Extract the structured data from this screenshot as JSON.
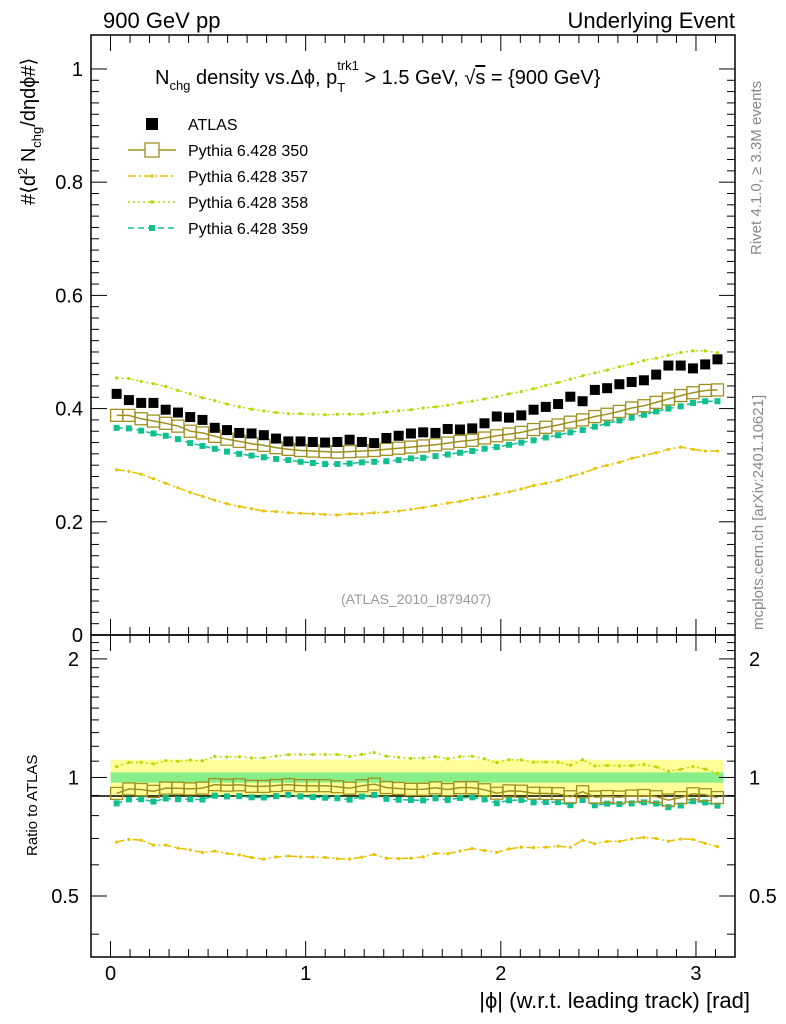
{
  "header": {
    "left": "900 GeV pp",
    "right": "Underlying Event"
  },
  "side_labels": {
    "rivet": "Rivet 4.1.0, ≥ 3.3M events",
    "mcplots": "mcplots.cern.ch [arXiv:2401.10621]"
  },
  "chart_data": {
    "type": "scatter",
    "title_parts": {
      "n": "N",
      "chg_sub": "chg",
      "mid": " density vs.Δϕ, p",
      "trk1_sup": "trk1",
      "t_sub": "T",
      "end": " > 1.5 GeV, ",
      "sqrt": "√",
      "s": "s",
      "energy": " = {900 GeV}"
    },
    "analysis_id": "(ATLAS_2010_I879407)",
    "ylabel_parts": {
      "a": "#⟨d",
      "two": "2",
      "b": " N",
      "chg": "chg",
      "c": "/dηdϕ#⟩"
    },
    "ratio_ylabel": "Ratio to ATLAS",
    "xlabel": "|ϕ| (w.r.t. leading track) [rad]",
    "xlim": [
      -0.1,
      3.2
    ],
    "ylim": [
      0.0,
      1.06
    ],
    "ratio_ylim": [
      0.35,
      2.3
    ],
    "main_yticks": [
      {
        "value": 0.0,
        "label": "0"
      },
      {
        "value": 0.2,
        "label": "0.2"
      },
      {
        "value": 0.4,
        "label": "0.4"
      },
      {
        "value": 0.6,
        "label": "0.6"
      },
      {
        "value": 0.8,
        "label": "0.8"
      },
      {
        "value": 1.0,
        "label": "1"
      }
    ],
    "ratio_yticks": [
      {
        "value": 0.5,
        "label": "0.5"
      },
      {
        "value": 1.0,
        "label": "1"
      },
      {
        "value": 2.0,
        "label": "2"
      }
    ],
    "xticks": [
      {
        "value": 0,
        "label": "0"
      },
      {
        "value": 1,
        "label": "1"
      },
      {
        "value": 2,
        "label": "2"
      },
      {
        "value": 3,
        "label": "3"
      }
    ],
    "x": [
      0.0314,
      0.0942,
      0.1571,
      0.2199,
      0.2827,
      0.3456,
      0.4084,
      0.4712,
      0.5341,
      0.5969,
      0.6597,
      0.7226,
      0.7854,
      0.8482,
      0.9111,
      0.9739,
      1.0367,
      1.0996,
      1.1624,
      1.2252,
      1.2881,
      1.3509,
      1.4137,
      1.4765,
      1.5394,
      1.6022,
      1.665,
      1.7279,
      1.7907,
      1.8535,
      1.9164,
      1.9792,
      2.042,
      2.1049,
      2.1677,
      2.2305,
      2.2934,
      2.3562,
      2.419,
      2.4819,
      2.5447,
      2.6075,
      2.6704,
      2.7332,
      2.796,
      2.8588,
      2.9217,
      2.9845,
      3.0473,
      3.1102
    ],
    "series": [
      {
        "name": "ATLAS",
        "color": "#000000",
        "values": [
          0.426,
          0.415,
          0.41,
          0.41,
          0.398,
          0.393,
          0.385,
          0.38,
          0.366,
          0.362,
          0.357,
          0.356,
          0.353,
          0.347,
          0.342,
          0.342,
          0.341,
          0.34,
          0.341,
          0.345,
          0.341,
          0.339,
          0.348,
          0.352,
          0.356,
          0.358,
          0.357,
          0.364,
          0.363,
          0.365,
          0.374,
          0.386,
          0.384,
          0.388,
          0.398,
          0.403,
          0.408,
          0.421,
          0.413,
          0.433,
          0.436,
          0.443,
          0.447,
          0.45,
          0.46,
          0.476,
          0.476,
          0.471,
          0.478,
          0.487
        ]
      },
      {
        "name": "Pythia 6.428 350",
        "color": "#a09020",
        "values": [
          0.388,
          0.388,
          0.382,
          0.378,
          0.374,
          0.369,
          0.36,
          0.357,
          0.351,
          0.346,
          0.342,
          0.338,
          0.335,
          0.331,
          0.328,
          0.326,
          0.325,
          0.324,
          0.323,
          0.324,
          0.325,
          0.326,
          0.328,
          0.33,
          0.332,
          0.334,
          0.336,
          0.339,
          0.342,
          0.344,
          0.348,
          0.352,
          0.355,
          0.358,
          0.363,
          0.367,
          0.371,
          0.376,
          0.38,
          0.386,
          0.39,
          0.395,
          0.401,
          0.405,
          0.411,
          0.417,
          0.423,
          0.428,
          0.432,
          0.433
        ]
      },
      {
        "name": "Pythia 6.428 357",
        "color": "#e6c300",
        "values": [
          0.292,
          0.289,
          0.284,
          0.276,
          0.268,
          0.26,
          0.252,
          0.245,
          0.238,
          0.232,
          0.227,
          0.223,
          0.219,
          0.218,
          0.216,
          0.215,
          0.214,
          0.213,
          0.212,
          0.214,
          0.214,
          0.216,
          0.217,
          0.219,
          0.222,
          0.225,
          0.229,
          0.233,
          0.236,
          0.241,
          0.244,
          0.249,
          0.253,
          0.258,
          0.264,
          0.268,
          0.273,
          0.28,
          0.286,
          0.294,
          0.3,
          0.305,
          0.312,
          0.317,
          0.322,
          0.328,
          0.332,
          0.328,
          0.325,
          0.325
        ]
      },
      {
        "name": "Pythia 6.428 358",
        "color": "#b8d800",
        "values": [
          0.454,
          0.453,
          0.448,
          0.444,
          0.439,
          0.432,
          0.426,
          0.419,
          0.414,
          0.408,
          0.403,
          0.399,
          0.396,
          0.393,
          0.391,
          0.391,
          0.39,
          0.389,
          0.39,
          0.39,
          0.39,
          0.392,
          0.394,
          0.396,
          0.398,
          0.401,
          0.403,
          0.406,
          0.41,
          0.413,
          0.417,
          0.421,
          0.426,
          0.43,
          0.435,
          0.441,
          0.446,
          0.452,
          0.458,
          0.463,
          0.468,
          0.474,
          0.479,
          0.485,
          0.489,
          0.494,
          0.499,
          0.502,
          0.502,
          0.499
        ]
      },
      {
        "name": "Pythia 6.428 359",
        "color": "#10c090",
        "values": [
          0.366,
          0.365,
          0.361,
          0.356,
          0.352,
          0.346,
          0.339,
          0.334,
          0.329,
          0.324,
          0.32,
          0.317,
          0.314,
          0.311,
          0.309,
          0.306,
          0.304,
          0.302,
          0.302,
          0.303,
          0.305,
          0.306,
          0.307,
          0.309,
          0.312,
          0.313,
          0.316,
          0.319,
          0.322,
          0.325,
          0.329,
          0.332,
          0.336,
          0.34,
          0.344,
          0.349,
          0.353,
          0.358,
          0.362,
          0.368,
          0.374,
          0.379,
          0.384,
          0.389,
          0.395,
          0.4,
          0.404,
          0.41,
          0.413,
          0.413
        ]
      }
    ],
    "ratio_band": {
      "name": "ATLAS uncertainty",
      "inner_color": "#88ee88",
      "outer_color": "#ffff99",
      "inner": [
        0.97,
        1.03
      ],
      "outer": [
        0.89,
        1.11
      ]
    }
  }
}
